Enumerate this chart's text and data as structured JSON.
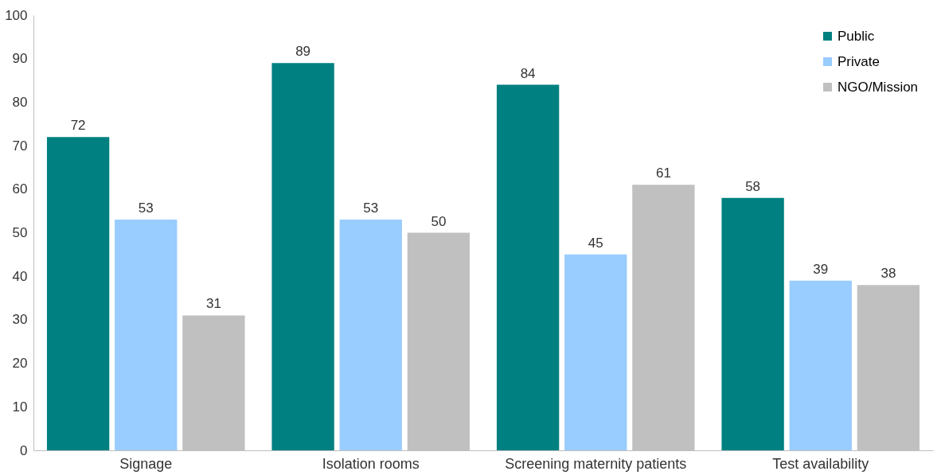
{
  "chart_data": {
    "type": "bar",
    "categories": [
      "Signage",
      "Isolation rooms",
      "Screening maternity patients",
      "Test availability"
    ],
    "series": [
      {
        "name": "Public",
        "color": "#008080",
        "values": [
          72,
          89,
          84,
          58
        ]
      },
      {
        "name": "Private",
        "color": "#99ccff",
        "values": [
          53,
          53,
          45,
          39
        ]
      },
      {
        "name": "NGO/Mission",
        "color": "#c0c0c0",
        "values": [
          31,
          50,
          61,
          38
        ]
      }
    ],
    "ylim": [
      0,
      100
    ],
    "yticks": [
      0,
      10,
      20,
      30,
      40,
      50,
      60,
      70,
      80,
      90,
      100
    ],
    "grid": false,
    "legend": "top right",
    "data_labels": true
  }
}
